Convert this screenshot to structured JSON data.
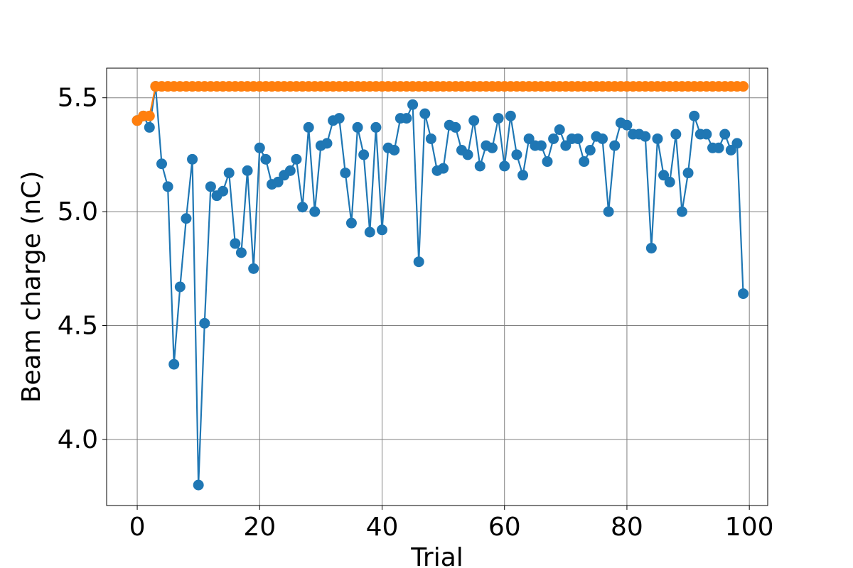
{
  "chart_data": {
    "type": "line",
    "title": "",
    "xlabel": "Trial",
    "ylabel": "Beam charge (nC)",
    "xlim": [
      -5,
      103
    ],
    "ylim": [
      3.71,
      5.63
    ],
    "xticks": [
      0,
      20,
      40,
      60,
      80,
      100
    ],
    "yticks": [
      4.0,
      4.5,
      5.0,
      5.5
    ],
    "xtick_labels": [
      "0",
      "20",
      "40",
      "60",
      "80",
      "100"
    ],
    "ytick_labels": [
      "4.0",
      "4.5",
      "5.0",
      "5.5"
    ],
    "grid": true,
    "series": [
      {
        "color": "#1f77b4",
        "x": [
          0,
          1,
          2,
          3,
          4,
          5,
          6,
          7,
          8,
          9,
          10,
          11,
          12,
          13,
          14,
          15,
          16,
          17,
          18,
          19,
          20,
          21,
          22,
          23,
          24,
          25,
          26,
          27,
          28,
          29,
          30,
          31,
          32,
          33,
          34,
          35,
          36,
          37,
          38,
          39,
          40,
          41,
          42,
          43,
          44,
          45,
          46,
          47,
          48,
          49,
          50,
          51,
          52,
          53,
          54,
          55,
          56,
          57,
          58,
          59,
          60,
          61,
          62,
          63,
          64,
          65,
          66,
          67,
          68,
          69,
          70,
          71,
          72,
          73,
          74,
          75,
          76,
          77,
          78,
          79,
          80,
          81,
          82,
          83,
          84,
          85,
          86,
          87,
          88,
          89,
          90,
          91,
          92,
          93,
          94,
          95,
          96,
          97,
          98,
          99
        ],
        "values": [
          5.4,
          5.42,
          5.37,
          5.55,
          5.21,
          5.11,
          4.33,
          4.67,
          4.97,
          5.23,
          3.8,
          4.51,
          5.11,
          5.07,
          5.09,
          5.17,
          4.86,
          4.82,
          5.18,
          4.75,
          5.28,
          5.23,
          5.12,
          5.13,
          5.16,
          5.18,
          5.23,
          5.02,
          5.37,
          5.0,
          5.29,
          5.3,
          5.4,
          5.41,
          5.17,
          4.95,
          5.37,
          5.25,
          4.91,
          5.37,
          4.92,
          5.28,
          5.27,
          5.41,
          5.41,
          5.47,
          4.78,
          5.43,
          5.32,
          5.18,
          5.19,
          5.38,
          5.37,
          5.27,
          5.25,
          5.4,
          5.2,
          5.29,
          5.28,
          5.41,
          5.2,
          5.42,
          5.25,
          5.16,
          5.32,
          5.29,
          5.29,
          5.22,
          5.32,
          5.36,
          5.29,
          5.32,
          5.32,
          5.22,
          5.27,
          5.33,
          5.32,
          5.0,
          5.29,
          5.39,
          5.38,
          5.34,
          5.34,
          5.33,
          4.84,
          5.32,
          5.16,
          5.13,
          5.34,
          5.0,
          5.17,
          5.42,
          5.34,
          5.34,
          5.28,
          5.28,
          5.34,
          5.27,
          5.3,
          4.64
        ]
      },
      {
        "color": "#ff7f0e",
        "x": [
          0,
          1,
          2,
          3,
          4,
          5,
          6,
          7,
          8,
          9,
          10,
          11,
          12,
          13,
          14,
          15,
          16,
          17,
          18,
          19,
          20,
          21,
          22,
          23,
          24,
          25,
          26,
          27,
          28,
          29,
          30,
          31,
          32,
          33,
          34,
          35,
          36,
          37,
          38,
          39,
          40,
          41,
          42,
          43,
          44,
          45,
          46,
          47,
          48,
          49,
          50,
          51,
          52,
          53,
          54,
          55,
          56,
          57,
          58,
          59,
          60,
          61,
          62,
          63,
          64,
          65,
          66,
          67,
          68,
          69,
          70,
          71,
          72,
          73,
          74,
          75,
          76,
          77,
          78,
          79,
          80,
          81,
          82,
          83,
          84,
          85,
          86,
          87,
          88,
          89,
          90,
          91,
          92,
          93,
          94,
          95,
          96,
          97,
          98,
          99
        ],
        "values": [
          5.4,
          5.42,
          5.42,
          5.55,
          5.55,
          5.55,
          5.55,
          5.55,
          5.55,
          5.55,
          5.55,
          5.55,
          5.55,
          5.55,
          5.55,
          5.55,
          5.55,
          5.55,
          5.55,
          5.55,
          5.55,
          5.55,
          5.55,
          5.55,
          5.55,
          5.55,
          5.55,
          5.55,
          5.55,
          5.55,
          5.55,
          5.55,
          5.55,
          5.55,
          5.55,
          5.55,
          5.55,
          5.55,
          5.55,
          5.55,
          5.55,
          5.55,
          5.55,
          5.55,
          5.55,
          5.55,
          5.55,
          5.55,
          5.55,
          5.55,
          5.55,
          5.55,
          5.55,
          5.55,
          5.55,
          5.55,
          5.55,
          5.55,
          5.55,
          5.55,
          5.55,
          5.55,
          5.55,
          5.55,
          5.55,
          5.55,
          5.55,
          5.55,
          5.55,
          5.55,
          5.55,
          5.55,
          5.55,
          5.55,
          5.55,
          5.55,
          5.55,
          5.55,
          5.55,
          5.55,
          5.55,
          5.55,
          5.55,
          5.55,
          5.55,
          5.55,
          5.55,
          5.55,
          5.55,
          5.55,
          5.55,
          5.55,
          5.55,
          5.55,
          5.55,
          5.55,
          5.55,
          5.55,
          5.55,
          5.55
        ]
      }
    ]
  }
}
